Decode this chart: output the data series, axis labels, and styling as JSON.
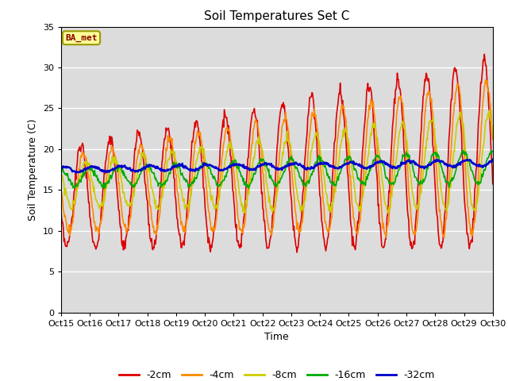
{
  "title": "Soil Temperatures Set C",
  "xlabel": "Time",
  "ylabel": "Soil Temperature (C)",
  "ylim": [
    0,
    35
  ],
  "yticks": [
    0,
    5,
    10,
    15,
    20,
    25,
    30,
    35
  ],
  "background_color": "#dcdcdc",
  "label_text": "BA_met",
  "label_bg": "#ffff99",
  "label_border": "#999900",
  "label_text_color": "#8b0000",
  "series": {
    "-2cm": {
      "color": "#dd0000",
      "linewidth": 1.2
    },
    "-4cm": {
      "color": "#ff8800",
      "linewidth": 1.2
    },
    "-8cm": {
      "color": "#cccc00",
      "linewidth": 1.2
    },
    "-16cm": {
      "color": "#00aa00",
      "linewidth": 1.2
    },
    "-32cm": {
      "color": "#0000cc",
      "linewidth": 1.8
    }
  },
  "xtick_labels": [
    "Oct 15",
    "Oct 16",
    "Oct 17",
    "Oct 18",
    "Oct 19",
    "Oct 20",
    "Oct 21",
    "Oct 22",
    "Oct 23",
    "Oct 24",
    "Oct 25",
    "Oct 26",
    "Oct 27",
    "Oct 28",
    "Oct 29",
    "Oct 30"
  ]
}
